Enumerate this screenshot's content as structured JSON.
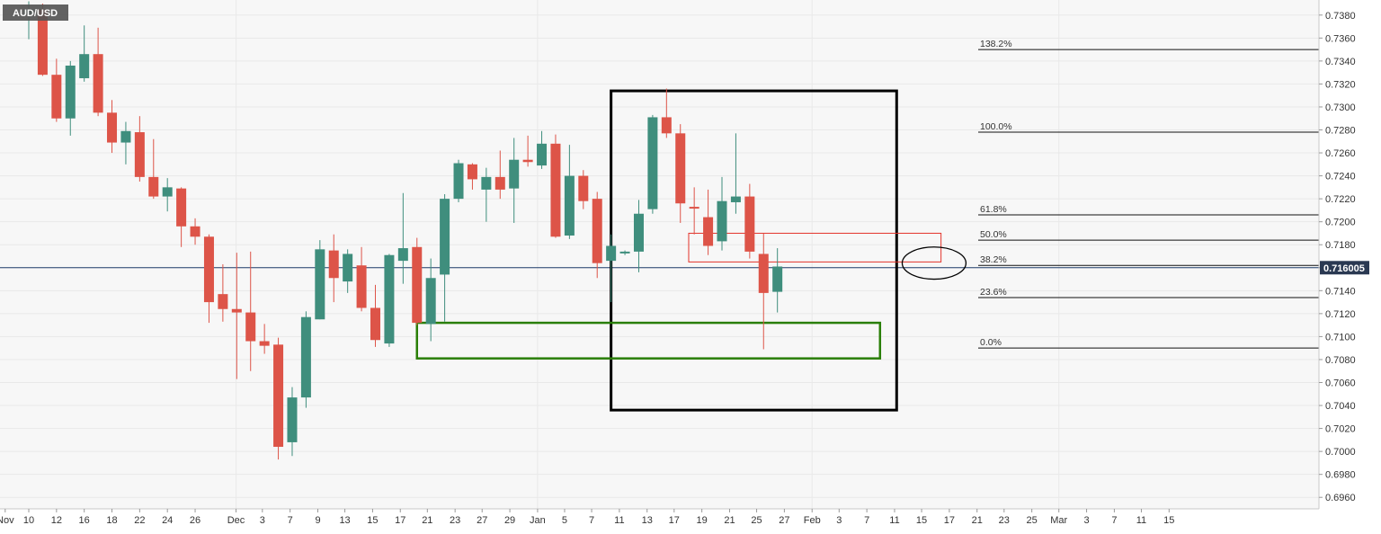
{
  "chart_data": {
    "type": "candlestick",
    "symbol": "AUD/USD",
    "ylim": [
      0.695,
      0.739
    ],
    "y_ticks": [
      "0.7380",
      "0.7360",
      "0.7340",
      "0.7320",
      "0.7300",
      "0.7280",
      "0.7260",
      "0.7240",
      "0.7220",
      "0.7200",
      "0.7180",
      "0.7160",
      "0.7140",
      "0.7120",
      "0.7100",
      "0.7080",
      "0.7060",
      "0.7040",
      "0.7020",
      "0.7000",
      "0.6980",
      "0.6960"
    ],
    "x_ticks": [
      {
        "label": "Nov",
        "i": -1.7
      },
      {
        "label": "10",
        "i": 0
      },
      {
        "label": "12",
        "i": 2
      },
      {
        "label": "16",
        "i": 4
      },
      {
        "label": "18",
        "i": 6
      },
      {
        "label": "22",
        "i": 8
      },
      {
        "label": "24",
        "i": 10
      },
      {
        "label": "26",
        "i": 12
      },
      {
        "label": "Dec",
        "i": 14.95
      },
      {
        "label": "3",
        "i": 16.85
      },
      {
        "label": "7",
        "i": 18.85
      },
      {
        "label": "9",
        "i": 20.85
      },
      {
        "label": "13",
        "i": 22.8
      },
      {
        "label": "15",
        "i": 24.8
      },
      {
        "label": "17",
        "i": 26.8
      },
      {
        "label": "21",
        "i": 28.75
      },
      {
        "label": "23",
        "i": 30.75
      },
      {
        "label": "27",
        "i": 32.7
      },
      {
        "label": "29",
        "i": 34.7
      },
      {
        "label": "Jan",
        "i": 36.7
      },
      {
        "label": "5",
        "i": 38.65
      },
      {
        "label": "7",
        "i": 40.6
      },
      {
        "label": "11",
        "i": 42.6
      },
      {
        "label": "13",
        "i": 44.6
      },
      {
        "label": "17",
        "i": 46.55
      },
      {
        "label": "19",
        "i": 48.55
      },
      {
        "label": "21",
        "i": 50.55
      },
      {
        "label": "25",
        "i": 52.5
      },
      {
        "label": "27",
        "i": 54.5
      },
      {
        "label": "Feb",
        "i": 56.5
      },
      {
        "label": "3",
        "i": 58.45
      },
      {
        "label": "7",
        "i": 60.45
      },
      {
        "label": "11",
        "i": 62.45
      },
      {
        "label": "15",
        "i": 64.4
      },
      {
        "label": "17",
        "i": 66.4
      },
      {
        "label": "21",
        "i": 68.4
      },
      {
        "label": "23",
        "i": 70.35
      },
      {
        "label": "25",
        "i": 72.35
      },
      {
        "label": "Mar",
        "i": 74.3
      },
      {
        "label": "3",
        "i": 76.3
      },
      {
        "label": "7",
        "i": 78.3
      },
      {
        "label": "11",
        "i": 80.25
      },
      {
        "label": "15",
        "i": 82.25
      }
    ],
    "candles": [
      {
        "o": 0.7381,
        "h": 0.7392,
        "l": 0.7359,
        "c": 0.7385
      },
      {
        "o": 0.7385,
        "h": 0.739,
        "l": 0.7327,
        "c": 0.7328
      },
      {
        "o": 0.7328,
        "h": 0.7342,
        "l": 0.7287,
        "c": 0.729
      },
      {
        "o": 0.729,
        "h": 0.734,
        "l": 0.7275,
        "c": 0.7336
      },
      {
        "o": 0.7325,
        "h": 0.7371,
        "l": 0.7322,
        "c": 0.7346
      },
      {
        "o": 0.7346,
        "h": 0.7369,
        "l": 0.7292,
        "c": 0.7295
      },
      {
        "o": 0.7295,
        "h": 0.7306,
        "l": 0.726,
        "c": 0.7269
      },
      {
        "o": 0.7269,
        "h": 0.7287,
        "l": 0.725,
        "c": 0.7279
      },
      {
        "o": 0.7278,
        "h": 0.7292,
        "l": 0.7235,
        "c": 0.7239
      },
      {
        "o": 0.7239,
        "h": 0.7272,
        "l": 0.722,
        "c": 0.7222
      },
      {
        "o": 0.7222,
        "h": 0.7238,
        "l": 0.7209,
        "c": 0.723
      },
      {
        "o": 0.7229,
        "h": 0.723,
        "l": 0.7178,
        "c": 0.7196
      },
      {
        "o": 0.7196,
        "h": 0.7203,
        "l": 0.718,
        "c": 0.7187
      },
      {
        "o": 0.7187,
        "h": 0.7189,
        "l": 0.7112,
        "c": 0.713
      },
      {
        "o": 0.7137,
        "h": 0.7163,
        "l": 0.7113,
        "c": 0.7124
      },
      {
        "o": 0.7124,
        "h": 0.7173,
        "l": 0.7063,
        "c": 0.7121
      },
      {
        "o": 0.7121,
        "h": 0.7174,
        "l": 0.707,
        "c": 0.7096
      },
      {
        "o": 0.7096,
        "h": 0.7111,
        "l": 0.7085,
        "c": 0.7092
      },
      {
        "o": 0.7093,
        "h": 0.7099,
        "l": 0.6993,
        "c": 0.7004
      },
      {
        "o": 0.7008,
        "h": 0.7056,
        "l": 0.6996,
        "c": 0.7047
      },
      {
        "o": 0.7047,
        "h": 0.7122,
        "l": 0.7038,
        "c": 0.7117
      },
      {
        "o": 0.7115,
        "h": 0.7184,
        "l": 0.7115,
        "c": 0.7176
      },
      {
        "o": 0.7175,
        "h": 0.7189,
        "l": 0.713,
        "c": 0.7151
      },
      {
        "o": 0.7148,
        "h": 0.7176,
        "l": 0.7138,
        "c": 0.7172
      },
      {
        "o": 0.7162,
        "h": 0.7178,
        "l": 0.7122,
        "c": 0.7125
      },
      {
        "o": 0.7125,
        "h": 0.7145,
        "l": 0.7091,
        "c": 0.7097
      },
      {
        "o": 0.7094,
        "h": 0.7172,
        "l": 0.7091,
        "c": 0.7171
      },
      {
        "o": 0.7166,
        "h": 0.7225,
        "l": 0.7146,
        "c": 0.7177
      },
      {
        "o": 0.7178,
        "h": 0.7186,
        "l": 0.711,
        "c": 0.7112
      },
      {
        "o": 0.7111,
        "h": 0.7168,
        "l": 0.7096,
        "c": 0.7151
      },
      {
        "o": 0.7154,
        "h": 0.7224,
        "l": 0.7113,
        "c": 0.722
      },
      {
        "o": 0.722,
        "h": 0.7254,
        "l": 0.7217,
        "c": 0.7251
      },
      {
        "o": 0.725,
        "h": 0.7251,
        "l": 0.7228,
        "c": 0.7237
      },
      {
        "o": 0.7228,
        "h": 0.7247,
        "l": 0.72,
        "c": 0.7239
      },
      {
        "o": 0.7239,
        "h": 0.7262,
        "l": 0.722,
        "c": 0.7228
      },
      {
        "o": 0.7229,
        "h": 0.7273,
        "l": 0.7199,
        "c": 0.7254
      },
      {
        "o": 0.7254,
        "h": 0.7275,
        "l": 0.7248,
        "c": 0.7252
      },
      {
        "o": 0.7249,
        "h": 0.7279,
        "l": 0.7246,
        "c": 0.7268
      },
      {
        "o": 0.7268,
        "h": 0.7276,
        "l": 0.7186,
        "c": 0.7187
      },
      {
        "o": 0.7188,
        "h": 0.7267,
        "l": 0.7185,
        "c": 0.724
      },
      {
        "o": 0.724,
        "h": 0.7245,
        "l": 0.7211,
        "c": 0.7218
      },
      {
        "o": 0.722,
        "h": 0.7226,
        "l": 0.7151,
        "c": 0.7164
      },
      {
        "o": 0.7166,
        "h": 0.7189,
        "l": 0.713,
        "c": 0.7179
      },
      {
        "o": 0.7173,
        "h": 0.7175,
        "l": 0.7171,
        "c": 0.7174
      },
      {
        "o": 0.7174,
        "h": 0.7219,
        "l": 0.7156,
        "c": 0.7207
      },
      {
        "o": 0.7211,
        "h": 0.7293,
        "l": 0.7207,
        "c": 0.7291
      },
      {
        "o": 0.7291,
        "h": 0.7316,
        "l": 0.7273,
        "c": 0.7277
      },
      {
        "o": 0.7277,
        "h": 0.7285,
        "l": 0.7199,
        "c": 0.7216
      },
      {
        "o": 0.7213,
        "h": 0.723,
        "l": 0.7189,
        "c": 0.7212
      },
      {
        "o": 0.7204,
        "h": 0.7228,
        "l": 0.7171,
        "c": 0.7179
      },
      {
        "o": 0.7183,
        "h": 0.7239,
        "l": 0.7175,
        "c": 0.7218
      },
      {
        "o": 0.7217,
        "h": 0.7277,
        "l": 0.7207,
        "c": 0.7222
      },
      {
        "o": 0.7222,
        "h": 0.7233,
        "l": 0.7168,
        "c": 0.7174
      },
      {
        "o": 0.7172,
        "h": 0.719,
        "l": 0.7089,
        "c": 0.7138
      },
      {
        "o": 0.7139,
        "h": 0.7177,
        "l": 0.7121,
        "c": 0.7161
      }
    ],
    "fibonacci": [
      {
        "label": "138.2%",
        "value": 0.735
      },
      {
        "label": "100.0%",
        "value": 0.7278
      },
      {
        "label": "61.8%",
        "value": 0.7206
      },
      {
        "label": "50.0%",
        "value": 0.7184
      },
      {
        "label": "38.2%",
        "value": 0.7162
      },
      {
        "label": "23.6%",
        "value": 0.7134
      },
      {
        "label": "0.0%",
        "value": 0.709
      }
    ],
    "current_price": {
      "value": 0.716,
      "label": "0.716005"
    },
    "annotations": [
      {
        "shape": "rectangle",
        "color": "#000000",
        "x0": 42.0,
        "x1": 62.6,
        "y0": 0.7314,
        "y1": 0.7036
      },
      {
        "shape": "rectangle",
        "color": "#2a7f07",
        "x0": 28.0,
        "x1": 61.4,
        "y0": 0.7112,
        "y1": 0.7081
      },
      {
        "shape": "rectangle",
        "color": "#e3332a",
        "x0": 47.6,
        "x1": 65.8,
        "y0": 0.719,
        "y1": 0.7165
      },
      {
        "shape": "ellipse",
        "color": "#000000",
        "cx": 65.3,
        "cy": 0.7164,
        "rx": 2.3,
        "ry": 0.0014
      }
    ],
    "colors": {
      "up": "#3f8e7d",
      "down": "#dd5448",
      "price_line": "#1f3d6b",
      "label_bg": "#2a3952",
      "grid": "#e9e9e9",
      "plot_bg": "#f7f7f7"
    }
  }
}
